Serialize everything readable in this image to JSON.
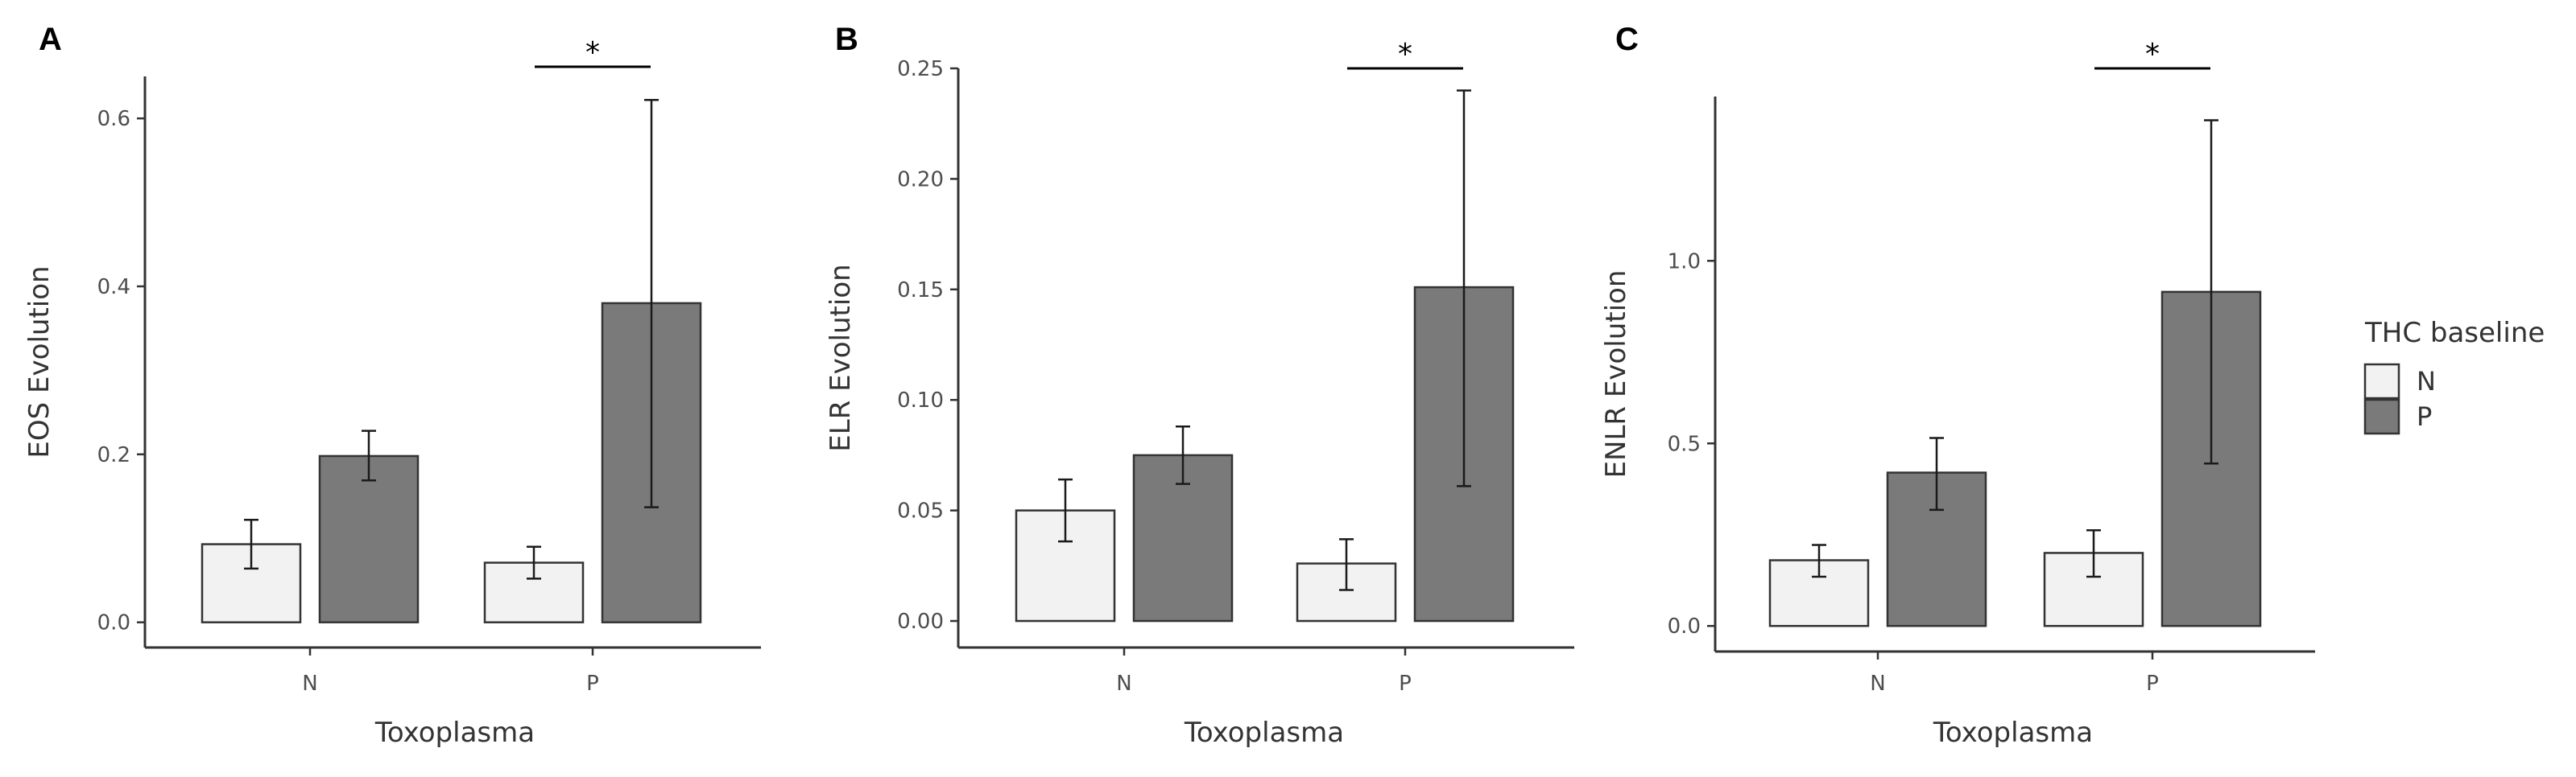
{
  "colors": {
    "N": "#f2f2f2",
    "P": "#7a7a7a"
  },
  "legend": {
    "title": "THC baseline",
    "items": [
      "N",
      "P"
    ]
  },
  "chart_data": [
    {
      "type": "bar",
      "panel": "A",
      "ylabel": "EOS Evolution",
      "xlabel": "Toxoplasma",
      "categories": [
        "N",
        "P"
      ],
      "ylim": [
        -0.03,
        0.65
      ],
      "yticks": [
        0.0,
        0.2,
        0.4,
        0.6
      ],
      "ytick_labels": [
        "0.0",
        "0.2",
        "0.4",
        "0.6"
      ],
      "series": [
        {
          "name": "N",
          "values": [
            0.093,
            0.071
          ],
          "err_low": [
            0.064,
            0.052
          ],
          "err_high": [
            0.122,
            0.09
          ]
        },
        {
          "name": "P",
          "values": [
            0.198,
            0.38
          ],
          "err_low": [
            0.169,
            0.137
          ],
          "err_high": [
            0.228,
            0.622
          ]
        }
      ],
      "annotation": {
        "text": "*",
        "category": "P",
        "y": 0.665
      }
    },
    {
      "type": "bar",
      "panel": "B",
      "ylabel": "ELR Evolution",
      "xlabel": "Toxoplasma",
      "categories": [
        "N",
        "P"
      ],
      "ylim": [
        -0.012,
        0.25
      ],
      "yticks": [
        0.0,
        0.05,
        0.1,
        0.15,
        0.2,
        0.25
      ],
      "ytick_labels": [
        "0.00",
        "0.05",
        "0.10",
        "0.15",
        "0.20",
        "0.25"
      ],
      "series": [
        {
          "name": "N",
          "values": [
            0.05,
            0.026
          ],
          "err_low": [
            0.036,
            0.014
          ],
          "err_high": [
            0.064,
            0.037
          ]
        },
        {
          "name": "P",
          "values": [
            0.075,
            0.151
          ],
          "err_low": [
            0.062,
            0.061
          ],
          "err_high": [
            0.088,
            0.24
          ]
        }
      ],
      "annotation": {
        "text": "*",
        "category": "P",
        "y": 0.25
      }
    },
    {
      "type": "bar",
      "panel": "C",
      "ylabel": "ENLR Evolution",
      "xlabel": "Toxoplasma",
      "categories": [
        "N",
        "P"
      ],
      "ylim": [
        -0.07,
        1.45
      ],
      "yticks": [
        0.0,
        0.5,
        1.0
      ],
      "ytick_labels": [
        "0.0",
        "0.5",
        "1.0"
      ],
      "series": [
        {
          "name": "N",
          "values": [
            0.18,
            0.2
          ],
          "err_low": [
            0.135,
            0.135
          ],
          "err_high": [
            0.222,
            0.262
          ]
        },
        {
          "name": "P",
          "values": [
            0.42,
            0.915
          ],
          "err_low": [
            0.318,
            0.445
          ],
          "err_high": [
            0.515,
            1.385
          ]
        }
      ],
      "annotation": {
        "text": "*",
        "category": "P",
        "y": 1.52
      }
    }
  ]
}
